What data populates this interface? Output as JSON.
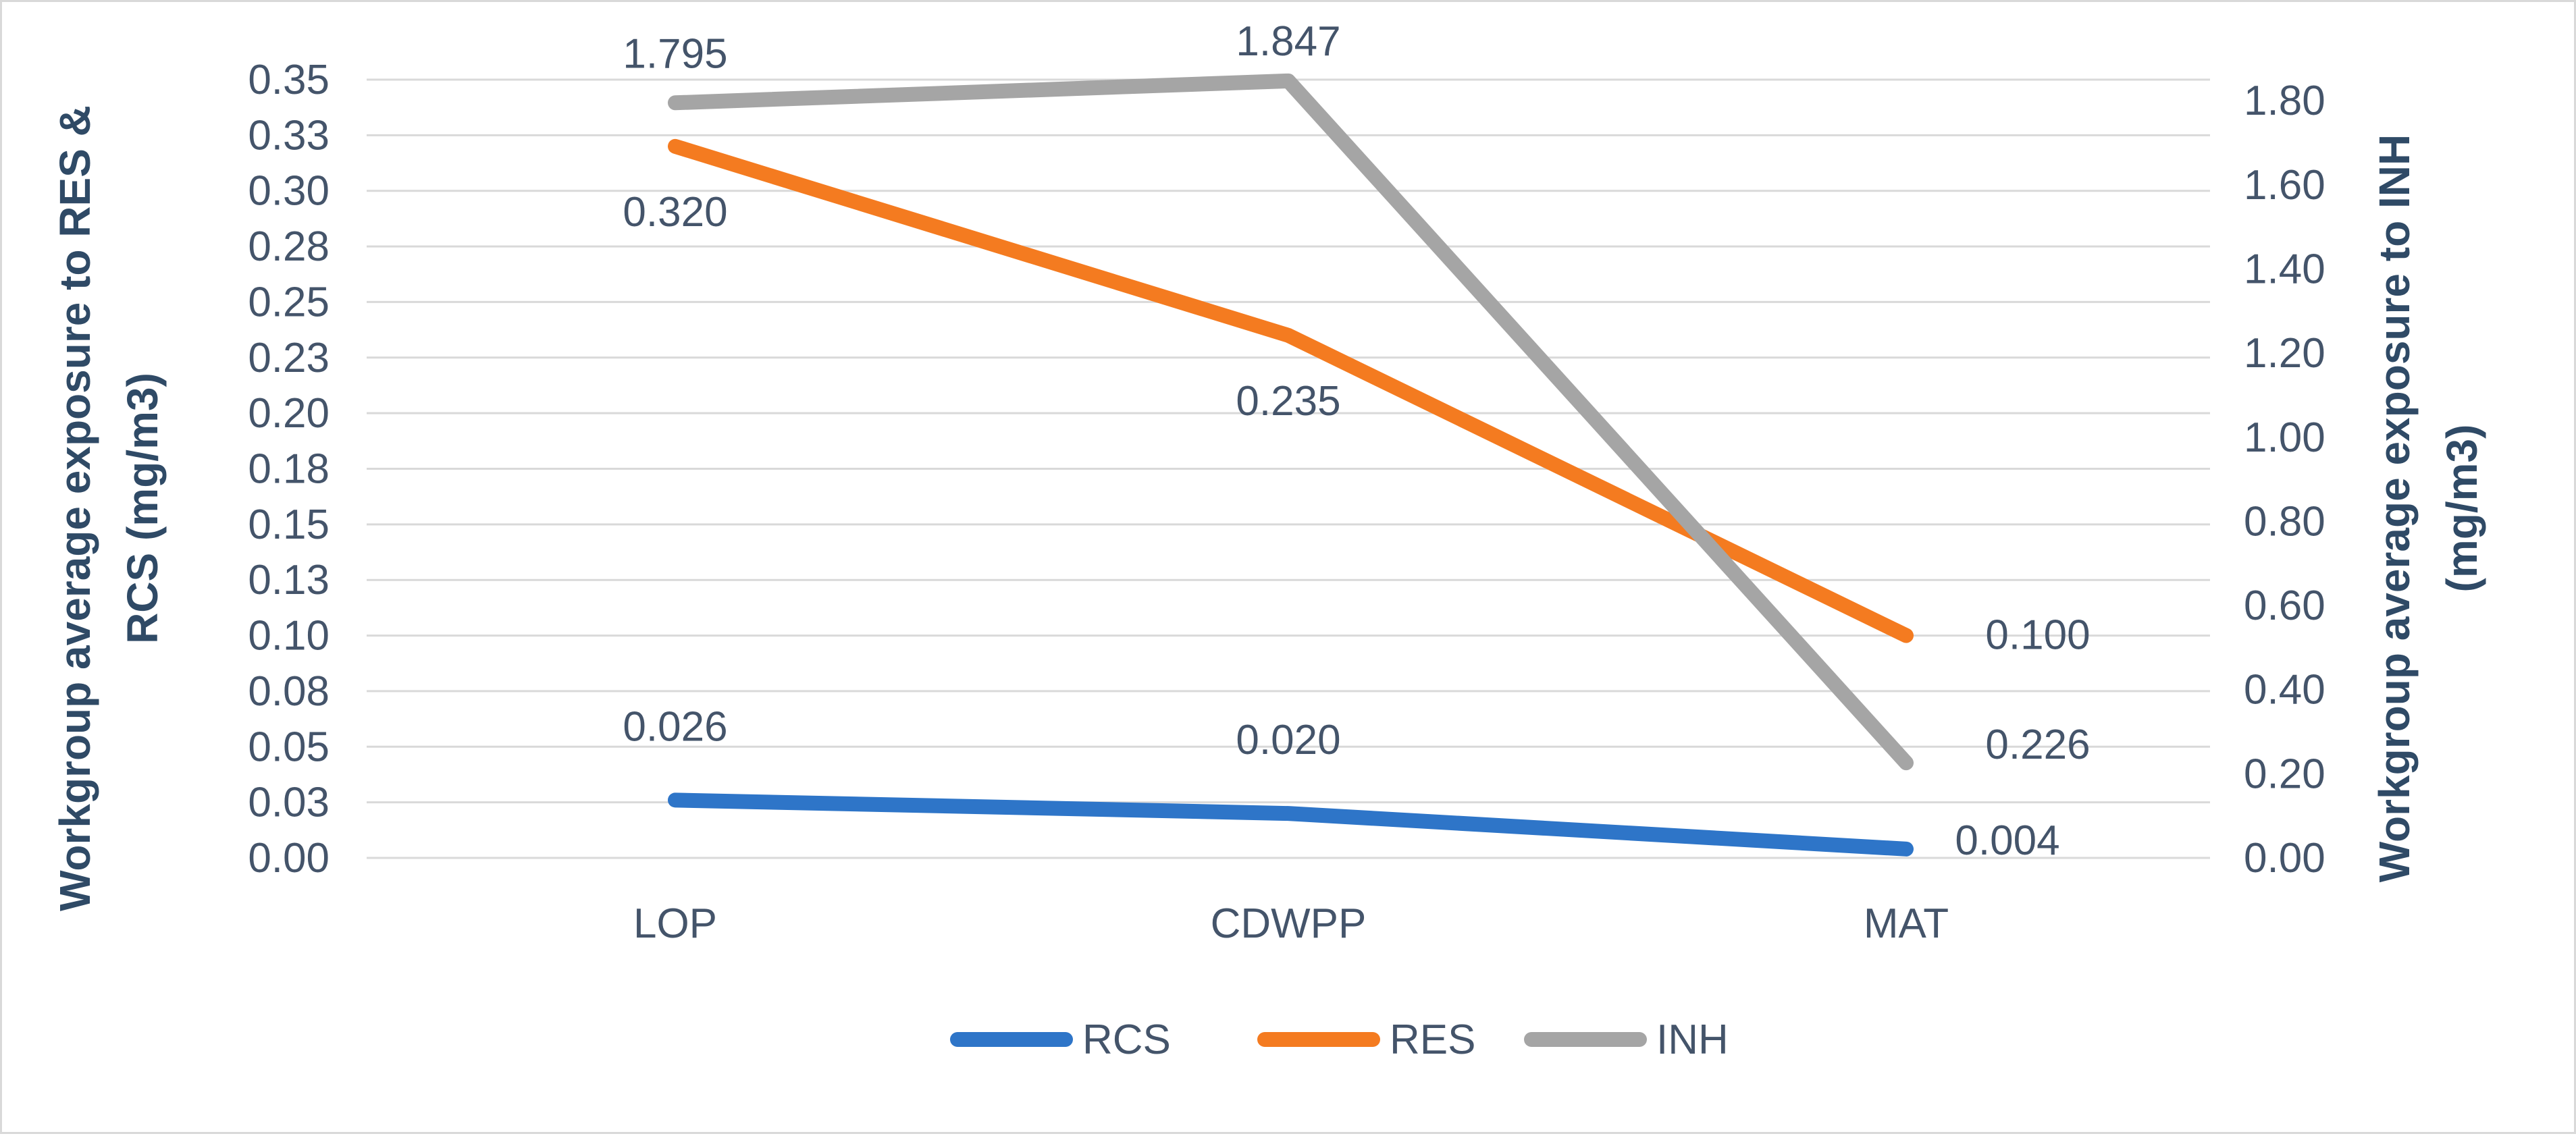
{
  "chart_data": {
    "type": "line",
    "categories": [
      "LOP",
      "CDWPP",
      "MAT"
    ],
    "series": [
      {
        "name": "RCS",
        "axis": "left",
        "color": "#2e75c8",
        "values": [
          0.026,
          0.02,
          0.004
        ],
        "labels": [
          "0.026",
          "0.020",
          "0.004"
        ]
      },
      {
        "name": "RES",
        "axis": "left",
        "color": "#f47b20",
        "values": [
          0.32,
          0.235,
          0.1
        ],
        "labels": [
          "0.320",
          "0.235",
          "0.100"
        ]
      },
      {
        "name": "INH",
        "axis": "right",
        "color": "#a5a5a5",
        "values": [
          1.795,
          1.847,
          0.226
        ],
        "labels": [
          "1.795",
          "1.847",
          "0.226"
        ]
      }
    ],
    "y_left": {
      "label_line1": "Workgroup average exposure to RES &",
      "label_line2": "RCS (mg/m3)",
      "ylim": [
        0,
        0.35
      ],
      "ticks": [
        0,
        0.025,
        0.05,
        0.075,
        0.1,
        0.125,
        0.15,
        0.175,
        0.2,
        0.225,
        0.25,
        0.275,
        0.3,
        0.325,
        0.35
      ],
      "tick_labels": [
        "0.00",
        "0.03",
        "0.05",
        "0.08",
        "0.10",
        "0.13",
        "0.15",
        "0.18",
        "0.20",
        "0.23",
        "0.25",
        "0.28",
        "0.30",
        "0.33",
        "0.35"
      ]
    },
    "y_right": {
      "label_line1": "Workgroup average exposure to INH",
      "label_line2": "(mg/m3)",
      "ylim": [
        0,
        1.85
      ],
      "ticks": [
        0,
        0.2,
        0.4,
        0.6,
        0.8,
        1.0,
        1.2,
        1.4,
        1.6,
        1.8
      ],
      "tick_labels": [
        "0.00",
        "0.20",
        "0.40",
        "0.60",
        "0.80",
        "1.00",
        "1.20",
        "1.40",
        "1.60",
        "1.80"
      ]
    },
    "grid": true,
    "legend": "bottom",
    "title": ""
  }
}
